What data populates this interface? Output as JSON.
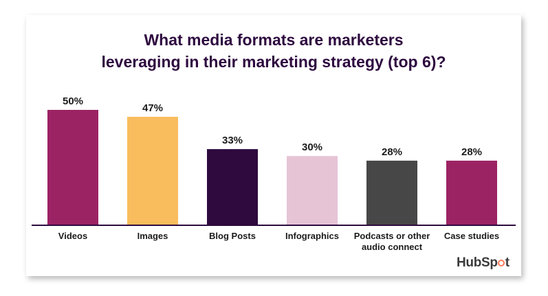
{
  "chart_data": {
    "type": "bar",
    "title_lines": [
      "What media formats are marketers",
      "leveraging in their marketing strategy (top 6)?"
    ],
    "categories": [
      [
        "Videos"
      ],
      [
        "Images"
      ],
      [
        "Blog Posts"
      ],
      [
        "Infographics"
      ],
      [
        "Podcasts or other",
        "audio connect"
      ],
      [
        "Case studies"
      ]
    ],
    "values": [
      50,
      47,
      33,
      30,
      28,
      28
    ],
    "value_labels": [
      "50%",
      "47%",
      "33%",
      "30%",
      "28%",
      "28%"
    ],
    "bar_colors": [
      "#9b2364",
      "#f9bd5e",
      "#2e0a3f",
      "#e6c4d6",
      "#474747",
      "#9b2364"
    ],
    "ylim": [
      0,
      50
    ],
    "grid": false,
    "legend": "none"
  },
  "brand": {
    "logo_text_pre": "HubSp",
    "logo_text_post": "t",
    "logo_icon": "sprocket-icon",
    "accent": "#ff7a59"
  }
}
